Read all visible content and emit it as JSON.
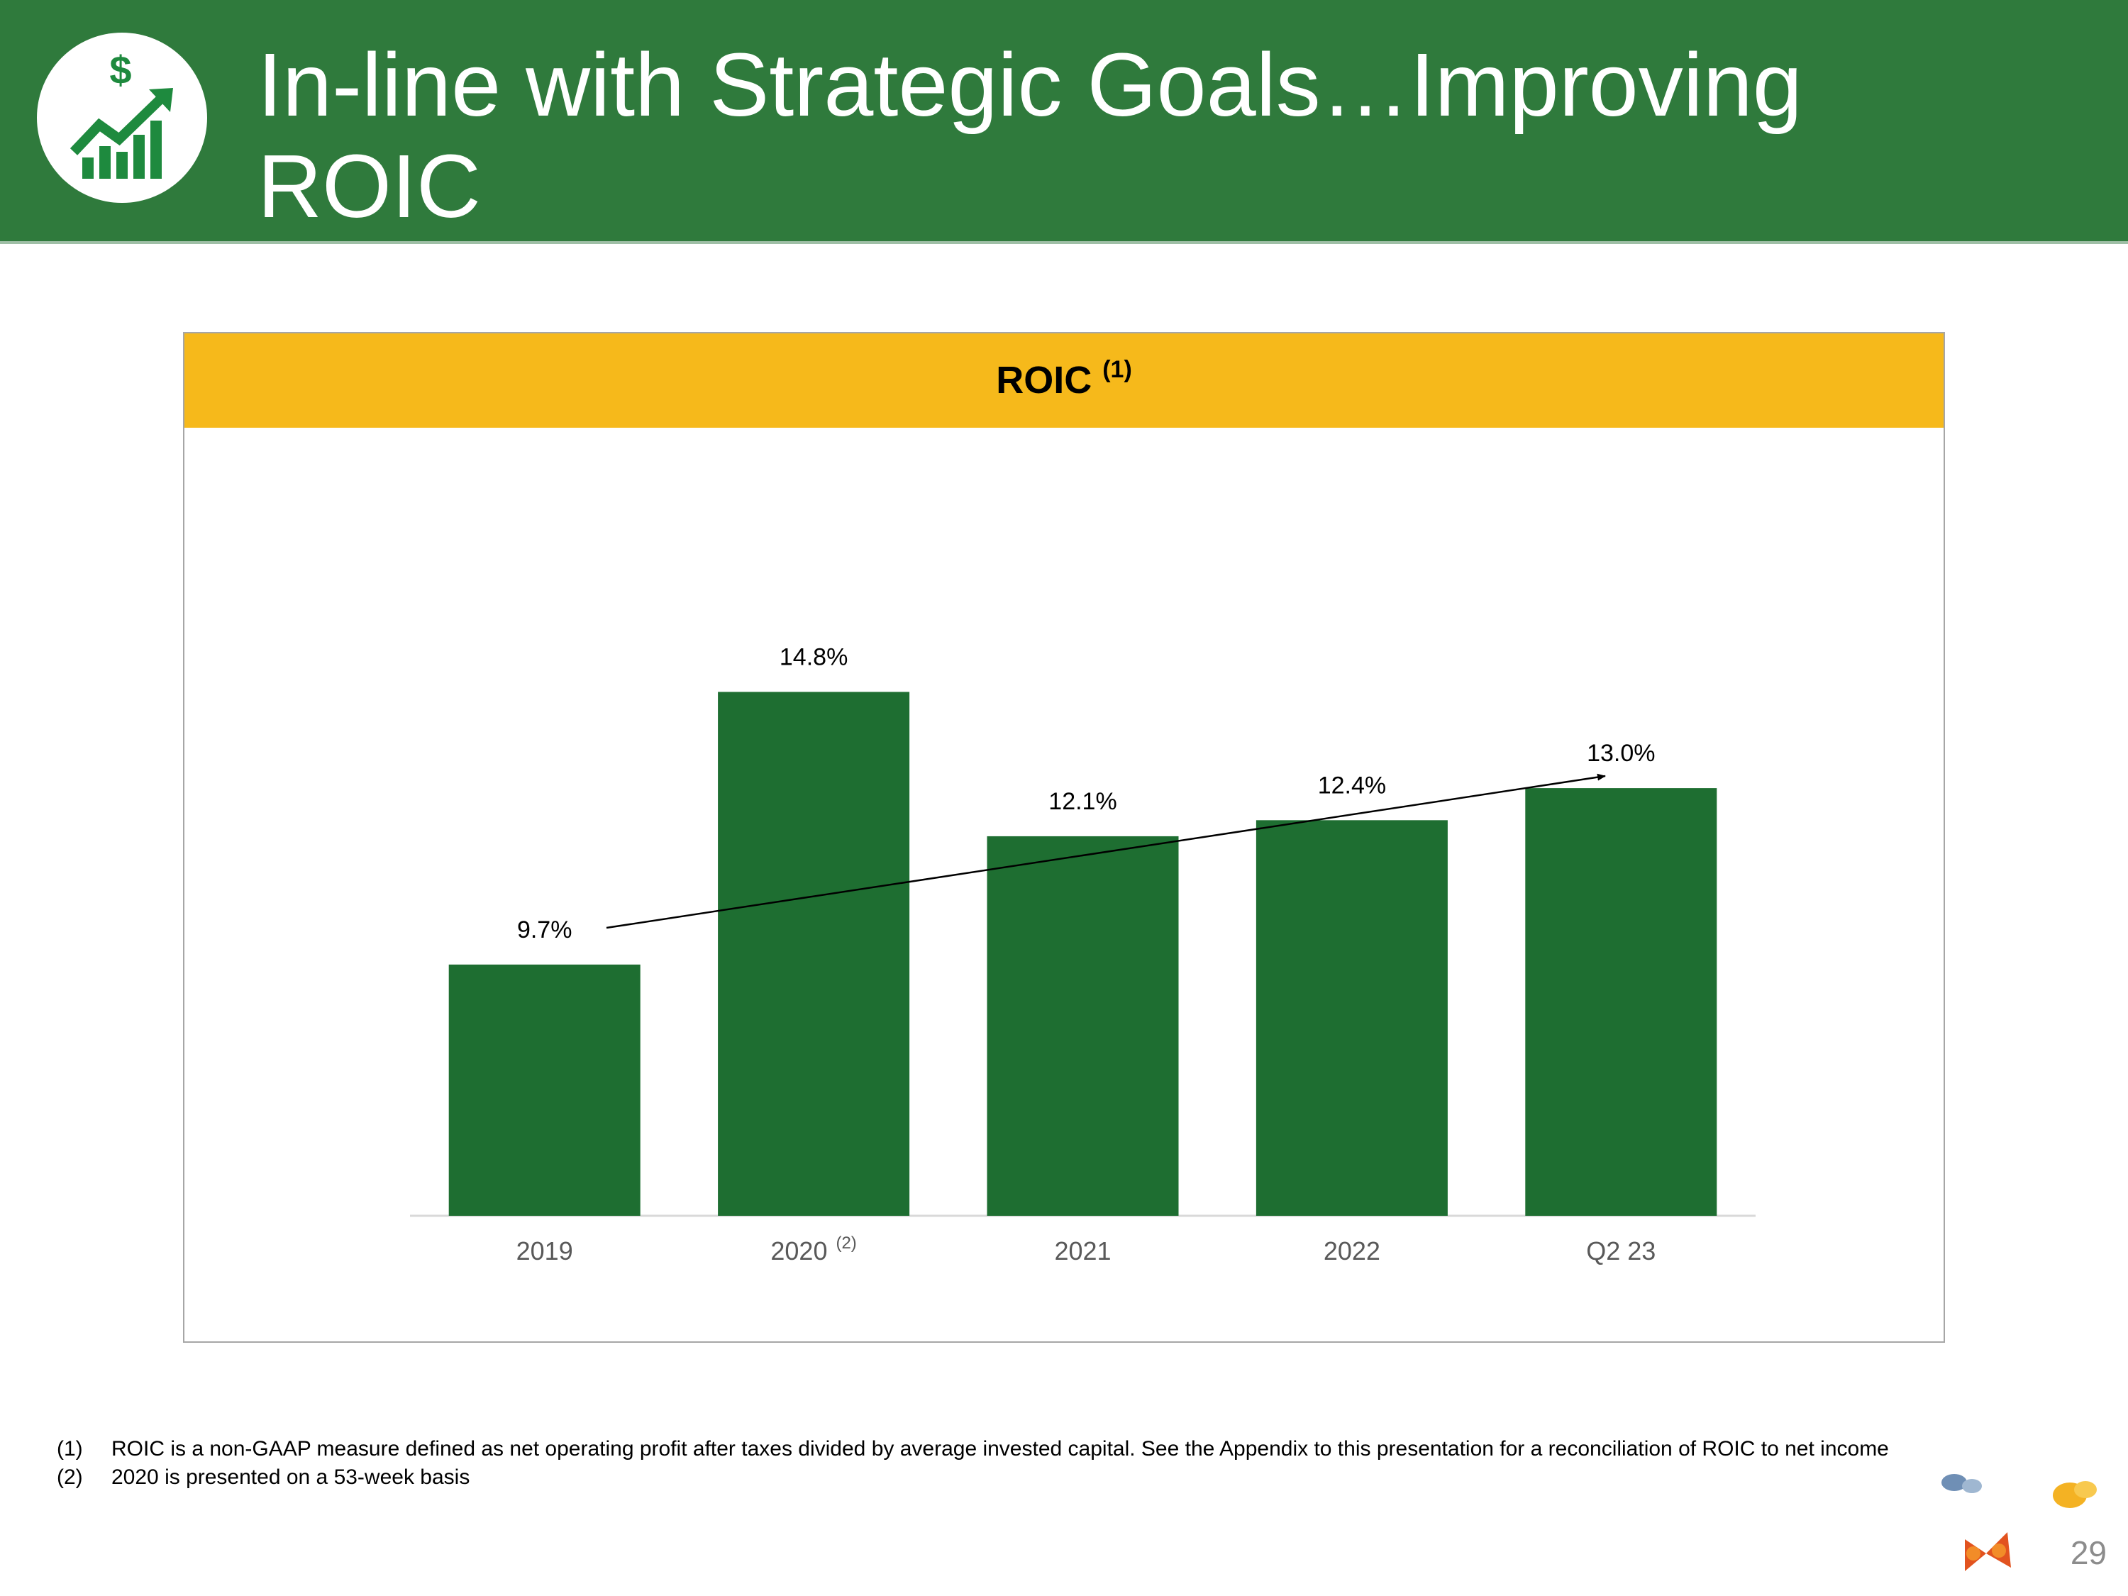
{
  "header": {
    "title_lines": [
      "In-line with Strategic Goals…Improving",
      "ROIC"
    ]
  },
  "chart_data": {
    "type": "bar",
    "title": "ROIC",
    "title_superscript": "(1)",
    "categories": [
      "2019",
      "2020",
      "2021",
      "2022",
      "Q2 23"
    ],
    "category_superscripts": [
      null,
      "(2)",
      null,
      null,
      null
    ],
    "values": [
      9.7,
      14.8,
      12.1,
      12.4,
      13.0
    ],
    "value_labels": [
      "9.7%",
      "14.8%",
      "12.1%",
      "12.4%",
      "13.0%"
    ],
    "color": "#1e6e31",
    "ylim": [
      5,
      16
    ]
  },
  "footnotes": [
    {
      "marker": "(1)",
      "text": "ROIC is a non-GAAP measure defined as net operating profit after taxes divided by average invested capital. See the Appendix to this presentation for a reconciliation of ROIC to net income"
    },
    {
      "marker": "(2)",
      "text": "2020 is presented on a 53-week basis"
    }
  ],
  "page_number": "29"
}
